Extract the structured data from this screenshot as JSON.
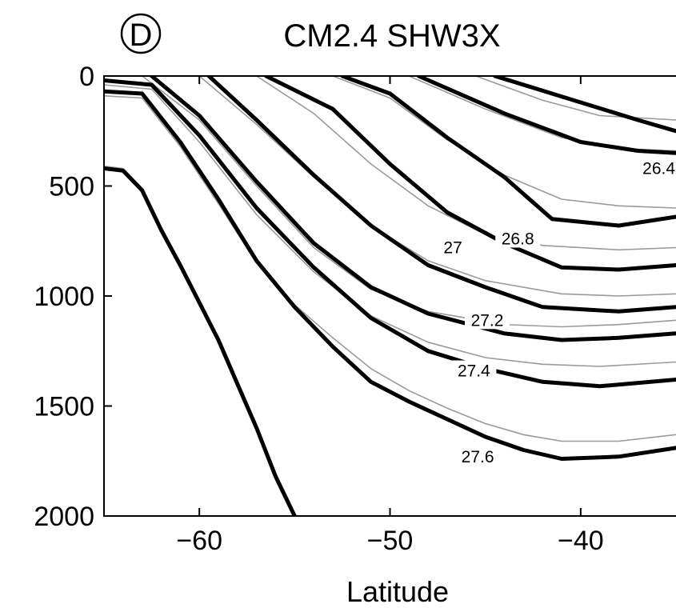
{
  "panel_badge": "D",
  "title": "CM2.4 SHW3X",
  "chart_data": {
    "type": "line",
    "title": "CM2.4 SHW3X",
    "xlabel": "Latitude",
    "ylabel": "",
    "xlim": [
      -65,
      -35
    ],
    "ylim": [
      2000,
      0
    ],
    "y_inverted": true,
    "x_ticks": [
      -60,
      -50,
      -40
    ],
    "x_tick_labels": [
      "−60",
      "−50",
      "−40"
    ],
    "y_ticks": [
      0,
      500,
      1000,
      1500,
      2000
    ],
    "y_tick_labels": [
      "0",
      "500",
      "1000",
      "1500",
      "2000"
    ],
    "grid": false,
    "colors": {
      "thick": "#000000",
      "thin": "#9a9a9a"
    },
    "contour_labels": [
      {
        "text": "26.4",
        "x": -35.9,
        "y": 420
      },
      {
        "text": "26.8",
        "x": -43.3,
        "y": 740
      },
      {
        "text": "27",
        "x": -46.7,
        "y": 780
      },
      {
        "text": "27.2",
        "x": -44.9,
        "y": 1110
      },
      {
        "text": "27.4",
        "x": -45.6,
        "y": 1340
      },
      {
        "text": "27.6",
        "x": -45.4,
        "y": 1730
      }
    ],
    "series": [
      {
        "style": "thick",
        "x": [
          -44.5,
          -40,
          -37,
          -35
        ],
        "y": [
          0,
          120,
          200,
          250
        ]
      },
      {
        "style": "thick",
        "x": [
          -48.5,
          -44,
          -40,
          -37,
          -35
        ],
        "y": [
          0,
          170,
          300,
          340,
          350
        ]
      },
      {
        "style": "thick",
        "x": [
          -52.5,
          -50,
          -47,
          -44,
          -41.5,
          -38,
          -35
        ],
        "y": [
          0,
          80,
          280,
          460,
          650,
          680,
          640
        ]
      },
      {
        "style": "thick",
        "x": [
          -56.5,
          -53,
          -50,
          -47,
          -44,
          -41,
          -38,
          -35
        ],
        "y": [
          0,
          150,
          400,
          620,
          760,
          870,
          880,
          860
        ]
      },
      {
        "style": "thick",
        "x": [
          -59.5,
          -57,
          -54,
          -51,
          -48,
          -45,
          -42,
          -38,
          -35
        ],
        "y": [
          0,
          200,
          450,
          680,
          860,
          960,
          1050,
          1070,
          1050
        ]
      },
      {
        "style": "thick",
        "x": [
          -62.5,
          -60,
          -57,
          -54,
          -51,
          -48,
          -44,
          -41,
          -38,
          -35
        ],
        "y": [
          0,
          180,
          480,
          760,
          960,
          1080,
          1170,
          1200,
          1190,
          1170
        ]
      },
      {
        "style": "thick",
        "x": [
          -65,
          -62.5,
          -60,
          -57,
          -54,
          -51,
          -48,
          -45,
          -42,
          -39,
          -35
        ],
        "y": [
          20,
          40,
          270,
          600,
          870,
          1100,
          1250,
          1330,
          1390,
          1410,
          1380
        ]
      },
      {
        "style": "thick",
        "x": [
          -65,
          -63,
          -61,
          -59,
          -57,
          -55,
          -53,
          -51,
          -49,
          -47,
          -45,
          -43,
          -41,
          -38,
          -35
        ],
        "y": [
          70,
          80,
          300,
          560,
          840,
          1050,
          1230,
          1390,
          1480,
          1560,
          1640,
          1700,
          1740,
          1730,
          1690
        ]
      },
      {
        "style": "thick",
        "x": [
          -65,
          -64,
          -63,
          -62,
          -61,
          -60,
          -59,
          -58,
          -57,
          -56,
          -55
        ],
        "y": [
          420,
          430,
          520,
          700,
          860,
          1030,
          1200,
          1400,
          1600,
          1820,
          2000
        ]
      },
      {
        "style": "thin",
        "x": [
          -45.5,
          -42,
          -39,
          -35
        ],
        "y": [
          0,
          110,
          180,
          200
        ]
      },
      {
        "style": "thin",
        "x": [
          -49,
          -45,
          -41,
          -38,
          -35
        ],
        "y": [
          0,
          150,
          280,
          330,
          340
        ]
      },
      {
        "style": "thin",
        "x": [
          -53,
          -50,
          -47,
          -44,
          -41,
          -38,
          -35
        ],
        "y": [
          0,
          100,
          290,
          450,
          560,
          590,
          600
        ]
      },
      {
        "style": "thin",
        "x": [
          -57,
          -54,
          -51,
          -48,
          -45,
          -42,
          -38,
          -35
        ],
        "y": [
          0,
          170,
          400,
          590,
          720,
          770,
          790,
          780
        ]
      },
      {
        "style": "thin",
        "x": [
          -60,
          -57,
          -54,
          -51,
          -48,
          -45,
          -41,
          -38,
          -35
        ],
        "y": [
          0,
          220,
          460,
          680,
          840,
          930,
          990,
          1000,
          990
        ]
      },
      {
        "style": "thin",
        "x": [
          -63,
          -60,
          -57,
          -54,
          -51,
          -48,
          -44,
          -41,
          -38,
          -35
        ],
        "y": [
          0,
          200,
          500,
          780,
          970,
          1070,
          1130,
          1140,
          1130,
          1110
        ]
      },
      {
        "style": "thin",
        "x": [
          -65,
          -62.5,
          -60,
          -57,
          -54,
          -51,
          -48,
          -45,
          -42,
          -39,
          -35
        ],
        "y": [
          40,
          60,
          300,
          630,
          890,
          1090,
          1210,
          1280,
          1310,
          1320,
          1300
        ]
      },
      {
        "style": "thin",
        "x": [
          -65,
          -63,
          -61,
          -59,
          -57,
          -55,
          -53,
          -51,
          -49,
          -47,
          -45,
          -43,
          -41,
          -38,
          -35
        ],
        "y": [
          90,
          100,
          320,
          580,
          850,
          1040,
          1190,
          1330,
          1430,
          1510,
          1580,
          1630,
          1660,
          1660,
          1630
        ]
      },
      {
        "style": "thin",
        "x": [
          -65,
          -64,
          -63,
          -62,
          -61,
          -60,
          -59,
          -58,
          -57,
          -56,
          -55
        ],
        "y": [
          410,
          420,
          510,
          690,
          850,
          1020,
          1190,
          1390,
          1590,
          1810,
          1990
        ]
      }
    ]
  }
}
